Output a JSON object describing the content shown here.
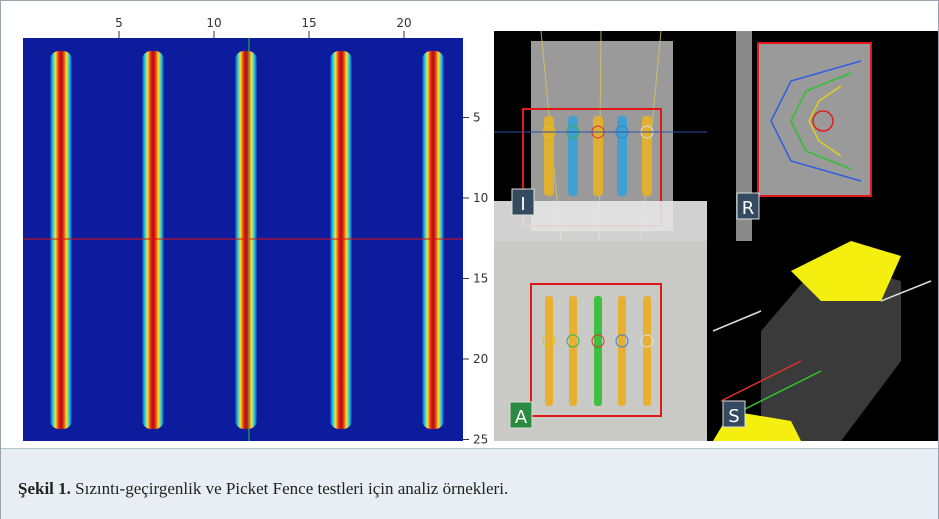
{
  "figure": {
    "top_ticks": [
      5,
      10,
      15,
      20
    ],
    "right_ticks": [
      5,
      10,
      15,
      20,
      25
    ],
    "view_labels": [
      "I",
      "R",
      "A",
      "S"
    ]
  },
  "caption": {
    "label": "Şekil 1.",
    "text": "Sızıntı-geçirgenlik ve Picket Fence testleri için analiz örnekleri."
  }
}
